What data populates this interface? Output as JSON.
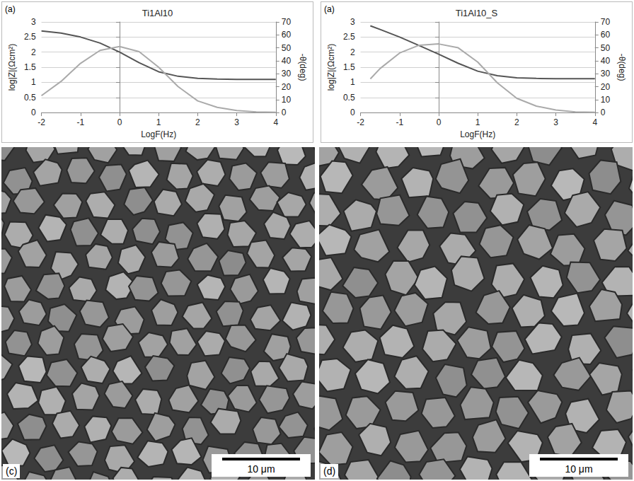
{
  "chart_data": [
    {
      "type": "line",
      "title": "Ti1Al10",
      "panel_label": "(a)",
      "xlabel": "LogF(Hz)",
      "ylabel": "log|Z|(Ωcm²)",
      "y2label": "-θ(deg)",
      "x": [
        -2,
        -1.5,
        -1,
        -0.5,
        0,
        0.5,
        1,
        1.5,
        2,
        2.5,
        3,
        3.5,
        4
      ],
      "series": [
        {
          "color": "#555555",
          "values": [
            2.7,
            2.63,
            2.5,
            2.3,
            2.0,
            1.65,
            1.35,
            1.2,
            1.13,
            1.11,
            1.1,
            1.1,
            1.1
          ]
        },
        {
          "color": "#aaaaaa",
          "axis": "y2",
          "values": [
            13,
            24,
            38,
            48,
            51,
            47,
            35,
            20,
            9,
            4,
            1.5,
            0.5,
            0.2
          ]
        }
      ],
      "xlim": [
        -2,
        4
      ],
      "xticks": [
        -2,
        -1,
        0,
        1,
        2,
        3,
        4
      ],
      "ylim": [
        0,
        3
      ],
      "yticks": [
        0,
        0.5,
        1,
        1.5,
        2,
        2.5,
        3
      ],
      "y2lim": [
        0,
        70
      ],
      "y2ticks": [
        0,
        10,
        20,
        30,
        40,
        50,
        60,
        70
      ],
      "grid": true,
      "marker": "none"
    },
    {
      "type": "line",
      "title": "Ti1Al10_S",
      "panel_label": "(a)",
      "xlabel": "LogF(Hz)",
      "ylabel": "log|Z|(Ωcm²)",
      "y2label": "-θ(deg)",
      "x": [
        -1.75,
        -1.5,
        -1,
        -0.5,
        0,
        0.5,
        1,
        1.5,
        2,
        2.5,
        3,
        3.5,
        4
      ],
      "series": [
        {
          "color": "#555555",
          "values": [
            2.87,
            2.75,
            2.5,
            2.22,
            1.93,
            1.63,
            1.37,
            1.22,
            1.15,
            1.13,
            1.12,
            1.12,
            1.12
          ]
        },
        {
          "color": "#aaaaaa",
          "axis": "y2",
          "values": [
            26,
            34,
            46,
            52,
            53,
            50,
            39,
            23,
            11,
            5,
            2,
            0.5,
            0.2
          ]
        }
      ],
      "xlim": [
        -2,
        4
      ],
      "xticks": [
        -2,
        -1,
        0,
        1,
        2,
        3,
        4
      ],
      "ylim": [
        0,
        3
      ],
      "yticks": [
        0,
        0.5,
        1,
        1.5,
        2,
        2.5,
        3
      ],
      "y2lim": [
        0,
        70
      ],
      "y2ticks": [
        0,
        10,
        20,
        30,
        40,
        50,
        60,
        70
      ],
      "grid": true,
      "marker": "none"
    }
  ],
  "images": [
    {
      "label": "(c)",
      "scale_bar": "10 μm"
    },
    {
      "label": "(d)",
      "scale_bar": "10 μm"
    }
  ]
}
